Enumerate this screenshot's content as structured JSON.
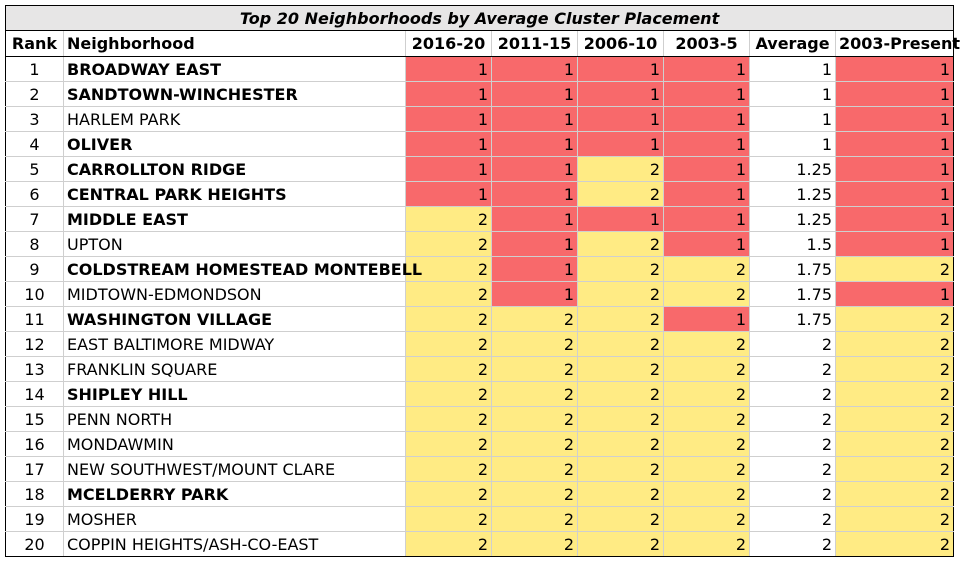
{
  "title": "Top 20 Neighborhoods by Average Cluster Placement",
  "headers": [
    "Rank",
    "Neighborhood",
    "2016-20",
    "2011-15",
    "2006-10",
    "2003-5",
    "Average",
    "2003-Present"
  ],
  "colors": {
    "cluster_1": "#f8696b",
    "cluster_2": "#ffeb84",
    "title_bg": "#e7e6e6"
  },
  "rows": [
    {
      "rank": "1",
      "name": "BROADWAY EAST",
      "bold": true,
      "y2016": "1",
      "y2011": "1",
      "y2006": "1",
      "y2003": "1",
      "avg": "1",
      "all": "1"
    },
    {
      "rank": "2",
      "name": "SANDTOWN-WINCHESTER",
      "bold": true,
      "y2016": "1",
      "y2011": "1",
      "y2006": "1",
      "y2003": "1",
      "avg": "1",
      "all": "1"
    },
    {
      "rank": "3",
      "name": "HARLEM PARK",
      "bold": false,
      "y2016": "1",
      "y2011": "1",
      "y2006": "1",
      "y2003": "1",
      "avg": "1",
      "all": "1"
    },
    {
      "rank": "4",
      "name": "OLIVER",
      "bold": true,
      "y2016": "1",
      "y2011": "1",
      "y2006": "1",
      "y2003": "1",
      "avg": "1",
      "all": "1"
    },
    {
      "rank": "5",
      "name": "CARROLLTON RIDGE",
      "bold": true,
      "y2016": "1",
      "y2011": "1",
      "y2006": "2",
      "y2003": "1",
      "avg": "1.25",
      "all": "1"
    },
    {
      "rank": "6",
      "name": "CENTRAL PARK HEIGHTS",
      "bold": true,
      "y2016": "1",
      "y2011": "1",
      "y2006": "2",
      "y2003": "1",
      "avg": "1.25",
      "all": "1"
    },
    {
      "rank": "7",
      "name": "MIDDLE EAST",
      "bold": true,
      "y2016": "2",
      "y2011": "1",
      "y2006": "1",
      "y2003": "1",
      "avg": "1.25",
      "all": "1"
    },
    {
      "rank": "8",
      "name": "UPTON",
      "bold": false,
      "y2016": "2",
      "y2011": "1",
      "y2006": "2",
      "y2003": "1",
      "avg": "1.5",
      "all": "1"
    },
    {
      "rank": "9",
      "name": "COLDSTREAM HOMESTEAD MONTEBELL",
      "bold": true,
      "y2016": "2",
      "y2011": "1",
      "y2006": "2",
      "y2003": "2",
      "avg": "1.75",
      "all": "2"
    },
    {
      "rank": "10",
      "name": "MIDTOWN-EDMONDSON",
      "bold": false,
      "y2016": "2",
      "y2011": "1",
      "y2006": "2",
      "y2003": "2",
      "avg": "1.75",
      "all": "1"
    },
    {
      "rank": "11",
      "name": "WASHINGTON VILLAGE",
      "bold": true,
      "y2016": "2",
      "y2011": "2",
      "y2006": "2",
      "y2003": "1",
      "avg": "1.75",
      "all": "2"
    },
    {
      "rank": "12",
      "name": "EAST BALTIMORE MIDWAY",
      "bold": false,
      "y2016": "2",
      "y2011": "2",
      "y2006": "2",
      "y2003": "2",
      "avg": "2",
      "all": "2"
    },
    {
      "rank": "13",
      "name": "FRANKLIN SQUARE",
      "bold": false,
      "y2016": "2",
      "y2011": "2",
      "y2006": "2",
      "y2003": "2",
      "avg": "2",
      "all": "2"
    },
    {
      "rank": "14",
      "name": "SHIPLEY HILL",
      "bold": true,
      "y2016": "2",
      "y2011": "2",
      "y2006": "2",
      "y2003": "2",
      "avg": "2",
      "all": "2"
    },
    {
      "rank": "15",
      "name": "PENN NORTH",
      "bold": false,
      "y2016": "2",
      "y2011": "2",
      "y2006": "2",
      "y2003": "2",
      "avg": "2",
      "all": "2"
    },
    {
      "rank": "16",
      "name": "MONDAWMIN",
      "bold": false,
      "y2016": "2",
      "y2011": "2",
      "y2006": "2",
      "y2003": "2",
      "avg": "2",
      "all": "2"
    },
    {
      "rank": "17",
      "name": "NEW SOUTHWEST/MOUNT CLARE",
      "bold": false,
      "y2016": "2",
      "y2011": "2",
      "y2006": "2",
      "y2003": "2",
      "avg": "2",
      "all": "2"
    },
    {
      "rank": "18",
      "name": "MCELDERRY PARK",
      "bold": true,
      "y2016": "2",
      "y2011": "2",
      "y2006": "2",
      "y2003": "2",
      "avg": "2",
      "all": "2"
    },
    {
      "rank": "19",
      "name": "MOSHER",
      "bold": false,
      "y2016": "2",
      "y2011": "2",
      "y2006": "2",
      "y2003": "2",
      "avg": "2",
      "all": "2"
    },
    {
      "rank": "20",
      "name": "COPPIN HEIGHTS/ASH-CO-EAST",
      "bold": false,
      "y2016": "2",
      "y2011": "2",
      "y2006": "2",
      "y2003": "2",
      "avg": "2",
      "all": "2"
    }
  ]
}
